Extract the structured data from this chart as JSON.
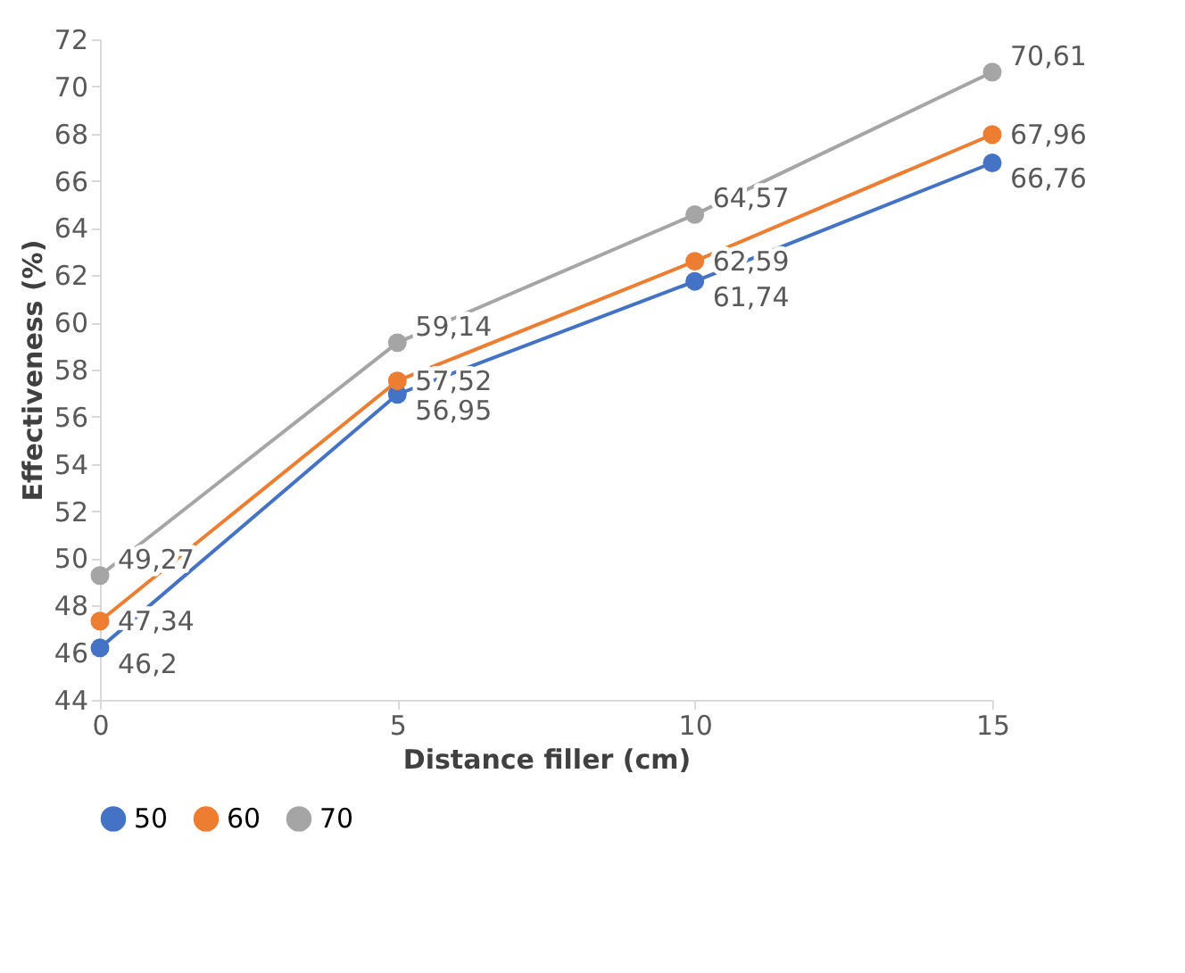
{
  "chart_data": {
    "type": "line",
    "xlabel": "Distance filler (cm)",
    "ylabel": "Effectiveness (%)",
    "x": [
      0,
      5,
      10,
      15
    ],
    "series": [
      {
        "name": "50",
        "color": "#4472c4",
        "values": [
          46.2,
          56.95,
          61.74,
          66.76
        ],
        "value_labels": [
          "46,2",
          "56,95",
          "61,74",
          "66,76"
        ]
      },
      {
        "name": "60",
        "color": "#ed7d31",
        "values": [
          47.34,
          57.52,
          62.59,
          67.96
        ],
        "value_labels": [
          "47,34",
          "57,52",
          "62,59",
          "67,96"
        ]
      },
      {
        "name": "70",
        "color": "#a5a5a5",
        "values": [
          49.27,
          59.14,
          64.57,
          70.61
        ],
        "value_labels": [
          "49,27",
          "59,14",
          "64,57",
          "70,61"
        ]
      }
    ],
    "xlim": [
      0,
      15
    ],
    "xticks": [
      0,
      5,
      10,
      15
    ],
    "ylim": [
      44,
      72
    ],
    "yticks": [
      44,
      46,
      48,
      50,
      52,
      54,
      56,
      58,
      60,
      62,
      64,
      66,
      68,
      70,
      72
    ],
    "grid": false,
    "legend": "bottom",
    "marker": "circle",
    "line_style": "solid"
  }
}
